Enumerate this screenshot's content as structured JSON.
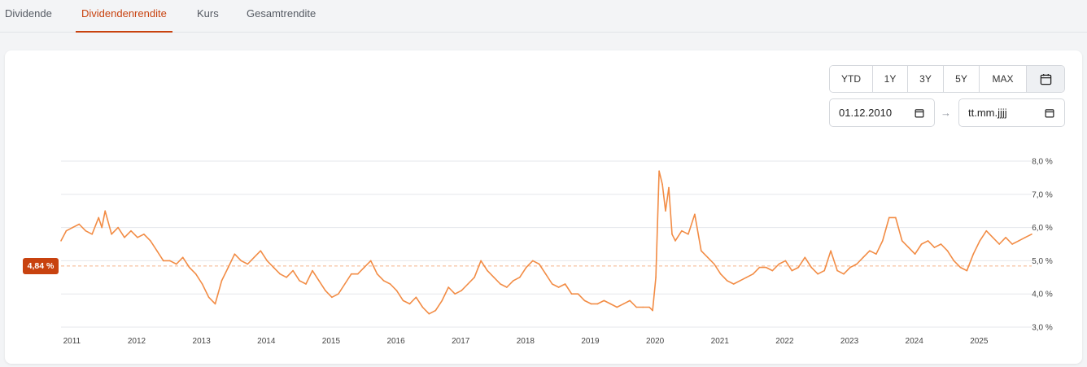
{
  "tabs": [
    {
      "label": "Dividende",
      "active": false
    },
    {
      "label": "Dividendenrendite",
      "active": true
    },
    {
      "label": "Kurs",
      "active": false
    },
    {
      "label": "Gesamtrendite",
      "active": false
    }
  ],
  "range_buttons": [
    {
      "label": "YTD"
    },
    {
      "label": "1Y"
    },
    {
      "label": "3Y"
    },
    {
      "label": "5Y"
    },
    {
      "label": "MAX"
    }
  ],
  "calendar_icon": "calendar-icon",
  "date_from": {
    "value": "01.12.2010"
  },
  "date_to": {
    "value": "tt.mm.jjjj"
  },
  "date_arrow": "→",
  "current_badge": "4,84 %",
  "colors": {
    "accent": "#c8420f",
    "line": "#f28c45",
    "grid": "#e5e7eb"
  },
  "chart_data": {
    "type": "line",
    "title": "",
    "xlabel": "",
    "ylabel": "",
    "ylim": [
      3.0,
      8.0
    ],
    "yticks": [
      "8,0 %",
      "7,0 %",
      "6,0 %",
      "5,0 %",
      "4,0 %",
      "3,0 %"
    ],
    "xticks": [
      "2011",
      "2012",
      "2013",
      "2014",
      "2015",
      "2016",
      "2017",
      "2018",
      "2019",
      "2020",
      "2021",
      "2022",
      "2023",
      "2024",
      "2025"
    ],
    "grid": true,
    "reference_line": {
      "value": 4.84,
      "label": "4,84 %"
    },
    "series": [
      {
        "x": [
          2010.92,
          2011.0,
          2011.1,
          2011.2,
          2011.3,
          2011.4,
          2011.5,
          2011.55,
          2011.6,
          2011.7,
          2011.8,
          2011.9,
          2012.0,
          2012.1,
          2012.2,
          2012.3,
          2012.4,
          2012.5,
          2012.6,
          2012.7,
          2012.8,
          2012.9,
          2013.0,
          2013.1,
          2013.2,
          2013.3,
          2013.4,
          2013.5,
          2013.6,
          2013.7,
          2013.8,
          2013.9,
          2014.0,
          2014.1,
          2014.2,
          2014.3,
          2014.4,
          2014.5,
          2014.6,
          2014.7,
          2014.8,
          2014.9,
          2015.0,
          2015.1,
          2015.2,
          2015.3,
          2015.4,
          2015.5,
          2015.6,
          2015.7,
          2015.8,
          2015.9,
          2016.0,
          2016.1,
          2016.2,
          2016.3,
          2016.4,
          2016.5,
          2016.6,
          2016.7,
          2016.8,
          2016.9,
          2017.0,
          2017.1,
          2017.2,
          2017.3,
          2017.4,
          2017.5,
          2017.6,
          2017.7,
          2017.8,
          2017.9,
          2018.0,
          2018.1,
          2018.2,
          2018.3,
          2018.4,
          2018.5,
          2018.6,
          2018.7,
          2018.8,
          2018.9,
          2019.0,
          2019.1,
          2019.2,
          2019.3,
          2019.4,
          2019.5,
          2019.6,
          2019.7,
          2019.8,
          2019.9,
          2020.0,
          2020.05,
          2020.1,
          2020.15,
          2020.2,
          2020.25,
          2020.3,
          2020.35,
          2020.4,
          2020.5,
          2020.6,
          2020.7,
          2020.8,
          2020.9,
          2021.0,
          2021.1,
          2021.2,
          2021.3,
          2021.4,
          2021.5,
          2021.6,
          2021.7,
          2021.8,
          2021.9,
          2022.0,
          2022.1,
          2022.2,
          2022.3,
          2022.4,
          2022.5,
          2022.6,
          2022.7,
          2022.8,
          2022.9,
          2023.0,
          2023.1,
          2023.2,
          2023.3,
          2023.4,
          2023.5,
          2023.6,
          2023.7,
          2023.8,
          2023.9,
          2024.0,
          2024.1,
          2024.2,
          2024.3,
          2024.4,
          2024.5,
          2024.6,
          2024.7,
          2024.8,
          2024.9,
          2025.0,
          2025.1,
          2025.2,
          2025.3,
          2025.4,
          2025.5,
          2025.6,
          2025.7,
          2025.8,
          2025.9
        ],
        "values": [
          5.6,
          5.9,
          6.0,
          6.1,
          5.9,
          5.8,
          6.3,
          6.0,
          6.5,
          5.8,
          6.0,
          5.7,
          5.9,
          5.7,
          5.8,
          5.6,
          5.3,
          5.0,
          5.0,
          4.9,
          5.1,
          4.8,
          4.6,
          4.3,
          3.9,
          3.7,
          4.4,
          4.8,
          5.2,
          5.0,
          4.9,
          5.1,
          5.3,
          5.0,
          4.8,
          4.6,
          4.5,
          4.7,
          4.4,
          4.3,
          4.7,
          4.4,
          4.1,
          3.9,
          4.0,
          4.3,
          4.6,
          4.6,
          4.8,
          5.0,
          4.6,
          4.4,
          4.3,
          4.1,
          3.8,
          3.7,
          3.9,
          3.6,
          3.4,
          3.5,
          3.8,
          4.2,
          4.0,
          4.1,
          4.3,
          4.5,
          5.0,
          4.7,
          4.5,
          4.3,
          4.2,
          4.4,
          4.5,
          4.8,
          5.0,
          4.9,
          4.6,
          4.3,
          4.2,
          4.3,
          4.0,
          4.0,
          3.8,
          3.7,
          3.7,
          3.8,
          3.7,
          3.6,
          3.7,
          3.8,
          3.6,
          3.6,
          3.6,
          3.5,
          4.5,
          7.7,
          7.3,
          6.5,
          7.2,
          5.8,
          5.6,
          5.9,
          5.8,
          6.4,
          5.3,
          5.1,
          4.9,
          4.6,
          4.4,
          4.3,
          4.4,
          4.5,
          4.6,
          4.8,
          4.8,
          4.7,
          4.9,
          5.0,
          4.7,
          4.8,
          5.1,
          4.8,
          4.6,
          4.7,
          5.3,
          4.7,
          4.6,
          4.8,
          4.9,
          5.1,
          5.3,
          5.2,
          5.6,
          6.3,
          6.3,
          5.6,
          5.4,
          5.2,
          5.5,
          5.6,
          5.4,
          5.5,
          5.3,
          5.0,
          4.8,
          4.7,
          5.2,
          5.6,
          5.9,
          5.7,
          5.5,
          5.7,
          5.5,
          5.6,
          5.7,
          5.8
        ]
      }
    ]
  }
}
